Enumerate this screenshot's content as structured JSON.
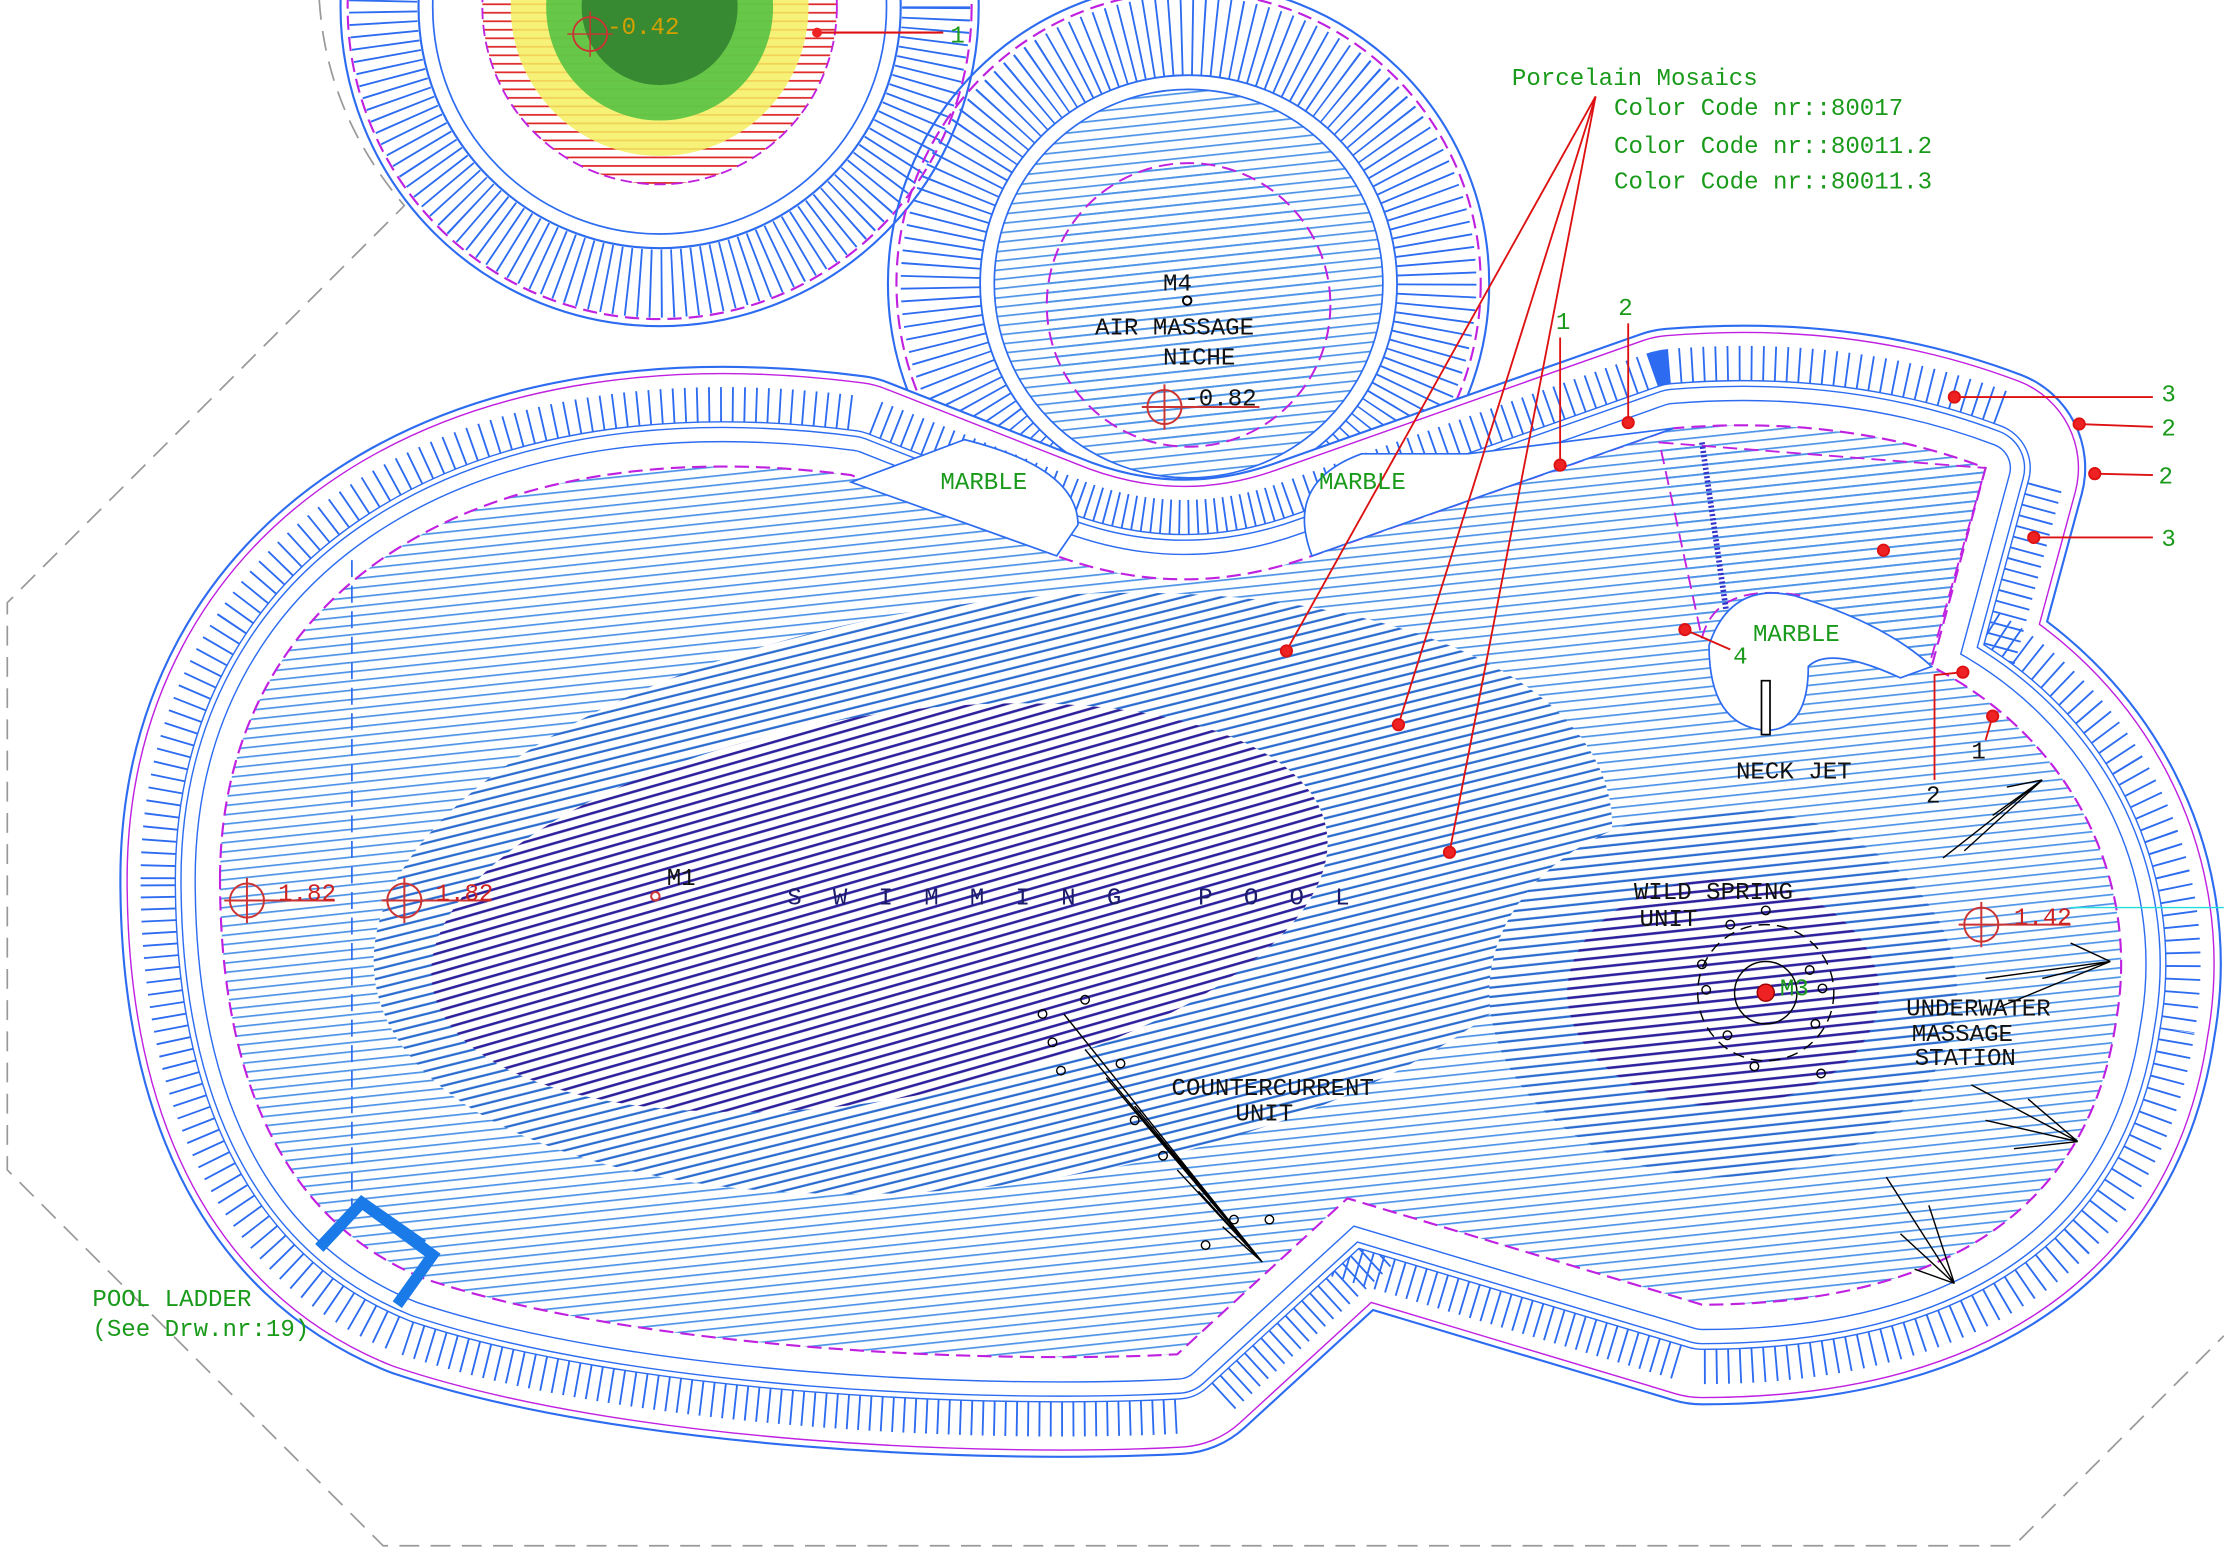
{
  "top_pool": {
    "elevation": "-0.42",
    "callout": "1"
  },
  "niche": {
    "marker": "M4",
    "label_lines": [
      "AIR MASSAGE",
      "NICHE"
    ],
    "elevation": "-0.82"
  },
  "mosaics": {
    "title": "Porcelain Mosaics",
    "codes": [
      "Color Code nr::80017",
      "Color Code nr::80011.2",
      "Color Code nr::80011.3"
    ]
  },
  "marble_labels": [
    "MARBLE",
    "MARBLE",
    "MARBLE"
  ],
  "pool": {
    "title": "SWIMMING POOL",
    "marker": "M1",
    "elevations": [
      "1.82",
      "1.82",
      "1.42"
    ]
  },
  "equipment": {
    "wild_spring": [
      "WILD SPRING",
      "UNIT"
    ],
    "wild_spring_marker": "M3",
    "underwater": [
      "UNDERWATER",
      "MASSAGE",
      "STATION"
    ],
    "countercurrent": [
      "COUNTERCURRENT",
      "UNIT"
    ],
    "neck_jet": "NECK JET"
  },
  "ladder": [
    "POOL LADDER",
    "(See Drw.nr:19)"
  ],
  "callouts": [
    "1",
    "2",
    "3",
    "2",
    "2",
    "3",
    "4",
    "2",
    "1"
  ]
}
